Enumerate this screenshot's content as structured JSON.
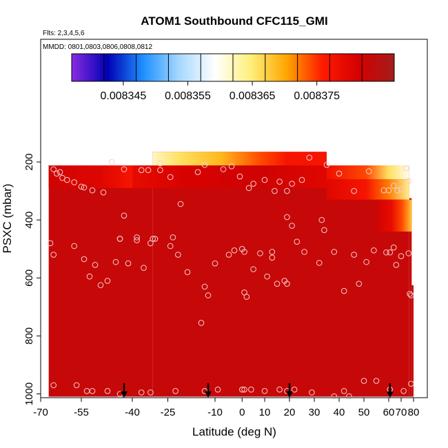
{
  "chart_data": {
    "type": "heatmap",
    "title": "ATOM1 Southbound CFC115_GMI",
    "flights_note": "Flts: 2,3,4,5,6",
    "dates_note": "MMDD: 0801,0803,0806,0808,0812",
    "xlabel": "Latitude (deg N)",
    "ylabel": "PSXC (mbar)",
    "xlim": [
      -70,
      80
    ],
    "ylim": [
      1000,
      0
    ],
    "x_ticks": [
      -70,
      -55,
      -40,
      -25,
      -10,
      0,
      10,
      20,
      30,
      40,
      50,
      60,
      70,
      80
    ],
    "x_tick_labels": [
      "-70",
      "-55",
      "-40",
      "-25",
      "-10",
      "0",
      "10",
      "20",
      "30",
      "40",
      "50",
      "60",
      "70",
      "80"
    ],
    "y_ticks": [
      200,
      400,
      600,
      800,
      1000
    ],
    "y_tick_labels": [
      "200",
      "400",
      "600",
      "800",
      "1000"
    ],
    "colorbar": {
      "range": [
        0.008337,
        0.008387
      ],
      "colors": [
        "#8a2be2",
        "#0000b4",
        "#1e90ff",
        "#a6d8ff",
        "#ffffff",
        "#ffef7a",
        "#ffa500",
        "#ff1a00",
        "#d40000",
        "#a41c1c"
      ],
      "tick_values": [
        0.008345,
        0.008355,
        0.008365,
        0.008375
      ],
      "tick_labels": [
        "0.008345",
        "0.008355",
        "0.008365",
        "0.008375"
      ],
      "segment_edges": [
        0.008337,
        0.008342,
        0.008347,
        0.008352,
        0.008357,
        0.008362,
        0.008367,
        0.008372,
        0.008377,
        0.008382,
        0.008387
      ]
    },
    "field": {
      "columns": [
        {
          "x0": -67.5,
          "x1": -31,
          "top": 212
        },
        {
          "x0": -31,
          "x1": 35,
          "top": 165
        },
        {
          "x0": 35,
          "x1": 76.5,
          "top": 212
        },
        {
          "x0": 76.5,
          "x1": 78.5,
          "top": 325
        },
        {
          "x0": 78.5,
          "x1": 80,
          "top": 625
        }
      ],
      "bottom": 1000,
      "background_value": 0.008383,
      "gradient_bands": [
        {
          "x0": -31,
          "x1": 35,
          "p_top": 165,
          "p_bottom": 212,
          "stops_x": [
            -31,
            -20,
            -5,
            10,
            20,
            35
          ],
          "values": [
            0.008362,
            0.008366,
            0.008369,
            0.008374,
            0.008377,
            0.008377
          ]
        },
        {
          "x0": -67.5,
          "x1": -40,
          "p_top": 212,
          "p_bottom": 290,
          "stops_x": [
            -67.5,
            -50,
            -40
          ],
          "values": [
            0.008382,
            0.00838,
            0.008377
          ]
        },
        {
          "x0": -40,
          "x1": 35,
          "p_top": 212,
          "p_bottom": 290,
          "stops_x": [
            -40,
            -20,
            10,
            35
          ],
          "values": [
            0.008379,
            0.008381,
            0.008382,
            0.00838
          ]
        },
        {
          "x0": 35,
          "x1": 76.5,
          "p_top": 212,
          "p_bottom": 260,
          "stops_x": [
            35,
            55,
            66,
            76.5
          ],
          "values": [
            0.008378,
            0.008374,
            0.008366,
            0.00836
          ]
        },
        {
          "x0": 35,
          "x1": 76.5,
          "p_top": 260,
          "p_bottom": 330,
          "stops_x": [
            35,
            55,
            66,
            76.5
          ],
          "values": [
            0.00838,
            0.008377,
            0.008372,
            0.008364
          ]
        },
        {
          "x0": 55,
          "x1": 78.5,
          "p_top": 330,
          "p_bottom": 440,
          "stops_x": [
            55,
            65,
            72,
            78.5
          ],
          "values": [
            0.008382,
            0.008379,
            0.008374,
            0.008368
          ]
        }
      ]
    },
    "observation_points": [
      [
        -66,
        225
      ],
      [
        -65,
        240
      ],
      [
        -64,
        235
      ],
      [
        -63,
        255
      ],
      [
        -61,
        262
      ],
      [
        -58,
        270
      ],
      [
        -55,
        285
      ],
      [
        -54,
        288
      ],
      [
        -51,
        298
      ],
      [
        -47,
        305
      ],
      [
        -45,
        200
      ],
      [
        -42,
        225
      ],
      [
        -36,
        228
      ],
      [
        -33,
        228
      ],
      [
        -28,
        228
      ],
      [
        -24,
        252
      ],
      [
        -20,
        345
      ],
      [
        -15,
        235
      ],
      [
        -13,
        210
      ],
      [
        -7,
        225
      ],
      [
        -4,
        215
      ],
      [
        -1,
        250
      ],
      [
        3,
        290
      ],
      [
        5,
        275
      ],
      [
        10,
        262
      ],
      [
        14,
        300
      ],
      [
        16,
        268
      ],
      [
        19,
        300
      ],
      [
        21,
        275
      ],
      [
        25,
        262
      ],
      [
        28,
        185
      ],
      [
        35,
        210
      ],
      [
        40,
        240
      ],
      [
        46,
        300
      ],
      [
        52,
        232
      ],
      [
        58,
        298
      ],
      [
        60,
        298
      ],
      [
        64,
        282
      ],
      [
        67,
        298
      ],
      [
        70,
        295
      ],
      [
        74,
        222
      ],
      [
        76,
        265
      ],
      [
        -67,
        480
      ],
      [
        -66,
        520
      ],
      [
        -58,
        490
      ],
      [
        -54,
        535
      ],
      [
        -52,
        595
      ],
      [
        -50,
        555
      ],
      [
        -48,
        625
      ],
      [
        -46,
        610
      ],
      [
        -44,
        545
      ],
      [
        -43,
        465
      ],
      [
        -41,
        550
      ],
      [
        -38,
        460
      ],
      [
        -35,
        565
      ],
      [
        -32,
        480
      ],
      [
        -30,
        465
      ],
      [
        -23,
        460
      ],
      [
        -21,
        520
      ],
      [
        -18,
        580
      ],
      [
        -13,
        630
      ],
      [
        -10,
        550
      ],
      [
        -5,
        520
      ],
      [
        -3,
        505
      ],
      [
        0,
        500
      ],
      [
        1,
        510
      ],
      [
        5,
        570
      ],
      [
        8,
        515
      ],
      [
        11,
        595
      ],
      [
        13,
        530
      ],
      [
        15,
        620
      ],
      [
        18,
        610
      ],
      [
        19,
        620
      ],
      [
        23,
        475
      ],
      [
        26,
        510
      ],
      [
        32,
        548
      ],
      [
        34,
        435
      ],
      [
        38,
        510
      ],
      [
        42,
        645
      ],
      [
        46,
        520
      ],
      [
        48,
        620
      ],
      [
        51,
        545
      ],
      [
        54,
        505
      ],
      [
        59,
        512
      ],
      [
        61,
        512
      ],
      [
        64,
        495
      ],
      [
        66,
        555
      ],
      [
        70,
        525
      ],
      [
        76,
        515
      ],
      [
        77,
        655
      ],
      [
        78,
        660
      ],
      [
        -43,
        465
      ],
      [
        -42,
        385
      ],
      [
        -38,
        470
      ],
      [
        -31,
        465
      ],
      [
        -28,
        205
      ],
      [
        -24,
        490
      ],
      [
        -12,
        660
      ],
      [
        1,
        650
      ],
      [
        2,
        665
      ],
      [
        13,
        510
      ],
      [
        19,
        390
      ],
      [
        21,
        420
      ],
      [
        33,
        400
      ],
      [
        -14,
        755
      ],
      [
        -66,
        970
      ],
      [
        -57,
        970
      ],
      [
        -53,
        990
      ],
      [
        -51,
        990
      ],
      [
        -46,
        990
      ],
      [
        -43,
        1000
      ],
      [
        -36,
        995
      ],
      [
        -32,
        995
      ],
      [
        -22,
        990
      ],
      [
        -13,
        990
      ],
      [
        -9,
        985
      ],
      [
        0,
        985
      ],
      [
        1,
        985
      ],
      [
        4,
        985
      ],
      [
        10,
        990
      ],
      [
        16,
        985
      ],
      [
        19,
        990
      ],
      [
        22,
        985
      ],
      [
        29,
        995
      ],
      [
        38,
        1010
      ],
      [
        42,
        990
      ],
      [
        44,
        1010
      ],
      [
        50,
        955
      ],
      [
        55,
        955
      ],
      [
        61,
        985
      ],
      [
        72,
        990
      ],
      [
        78,
        965
      ]
    ],
    "flight_markers_x": [
      -42,
      -12,
      20,
      61
    ]
  }
}
